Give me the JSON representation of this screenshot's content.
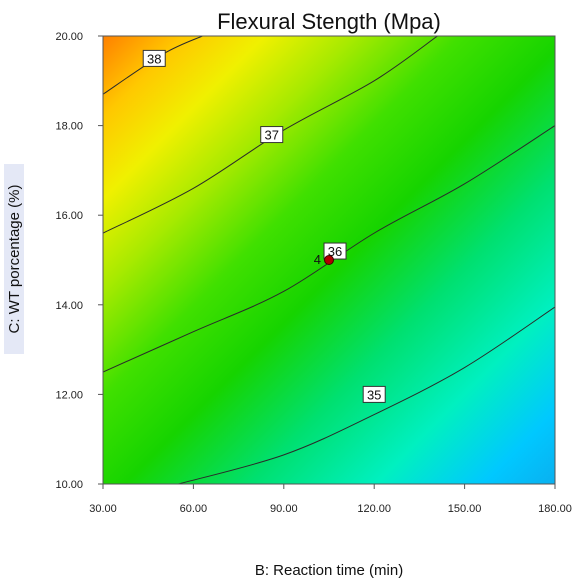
{
  "chart_data": {
    "type": "contour",
    "title": "Flexural Stength (Mpa)",
    "xlabel": "B: Reaction time (min)",
    "ylabel": "C: WT porcentage (%)",
    "xlim": [
      30,
      180
    ],
    "ylim": [
      10,
      20
    ],
    "x_ticks": [
      "30.00",
      "60.00",
      "90.00",
      "120.00",
      "150.00",
      "180.00"
    ],
    "y_ticks": [
      "10.00",
      "12.00",
      "14.00",
      "16.00",
      "18.00",
      "20.00"
    ],
    "contours": [
      {
        "level": "35",
        "points": [
          [
            55,
            10
          ],
          [
            90,
            10.65
          ],
          [
            120,
            11.55
          ],
          [
            150,
            12.6
          ],
          [
            180,
            13.95
          ]
        ],
        "label_at": [
          120,
          12.0
        ]
      },
      {
        "level": "36",
        "points": [
          [
            30,
            12.5
          ],
          [
            60,
            13.4
          ],
          [
            90,
            14.3
          ],
          [
            120,
            15.6
          ],
          [
            150,
            16.7
          ],
          [
            180,
            18.0
          ]
        ],
        "label_at": [
          107,
          15.2
        ]
      },
      {
        "level": "37",
        "points": [
          [
            30,
            15.6
          ],
          [
            60,
            16.6
          ],
          [
            90,
            17.9
          ],
          [
            120,
            19.0
          ],
          [
            141,
            20.0
          ]
        ],
        "label_at": [
          86,
          17.8
        ]
      },
      {
        "level": "38",
        "points": [
          [
            30,
            18.7
          ],
          [
            50,
            19.6
          ],
          [
            63,
            20.0
          ]
        ],
        "label_at": [
          47,
          19.5
        ]
      }
    ],
    "design_points": [
      {
        "x": 105,
        "y": 15.0,
        "label": "4"
      }
    ],
    "colormap": {
      "low_color": "#00c8ff",
      "mid_color": "#16d400",
      "high_color": "#ff8000"
    }
  }
}
